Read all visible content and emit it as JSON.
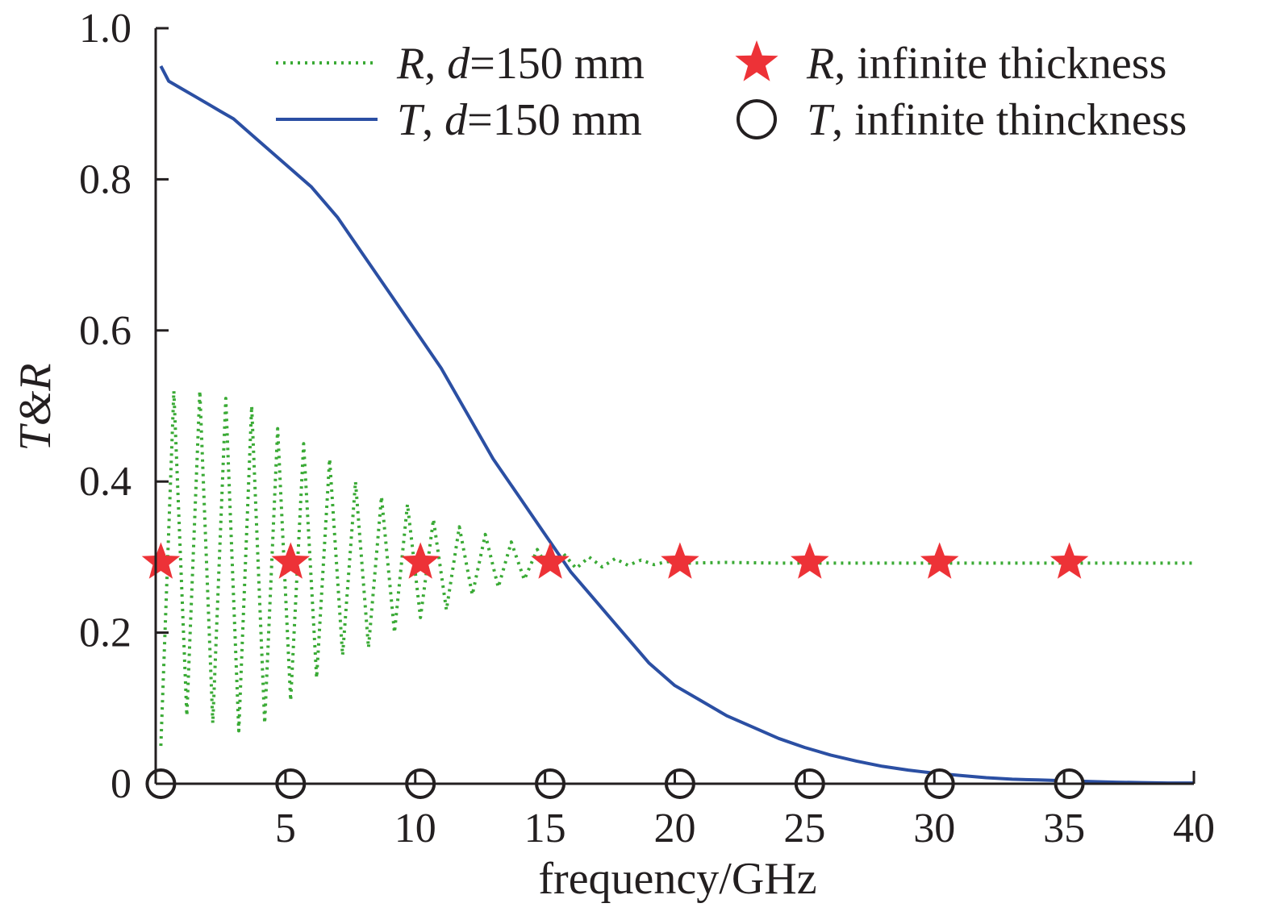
{
  "chart_data": {
    "type": "line",
    "title": "",
    "xlabel": "frequency/GHz",
    "ylabel": "T&R",
    "xlim": [
      0,
      40
    ],
    "ylim": [
      0,
      1.0
    ],
    "x_ticks": [
      5,
      10,
      15,
      20,
      25,
      30,
      35,
      40
    ],
    "x_tick_labels": [
      "5",
      "10",
      "15",
      "20",
      "25",
      "30",
      "35",
      "40"
    ],
    "y_ticks": [
      0,
      0.2,
      0.4,
      0.6,
      0.8,
      1.0
    ],
    "y_tick_labels": [
      "0",
      "0.2",
      "0.4",
      "0.6",
      "0.8",
      "1.0"
    ],
    "grid": false,
    "legend_position": "top-right",
    "series": [
      {
        "name": "R, d=150 mm",
        "style": "dotted",
        "color": "#3aaa35",
        "x": [
          0.2,
          0.7,
          1.2,
          1.7,
          2.2,
          2.7,
          3.2,
          3.7,
          4.2,
          4.7,
          5.2,
          5.7,
          6.2,
          6.7,
          7.2,
          7.7,
          8.2,
          8.7,
          9.2,
          9.7,
          10.2,
          10.7,
          11.2,
          11.7,
          12.2,
          12.7,
          13.2,
          13.7,
          14.2,
          14.7,
          15.2,
          15.7,
          16.2,
          16.7,
          17.2,
          17.7,
          18.2,
          18.7,
          19.2,
          19.7,
          20.5,
          22,
          24,
          26,
          28,
          30,
          32,
          34,
          36,
          38,
          40
        ],
        "y": [
          0.05,
          0.52,
          0.09,
          0.52,
          0.08,
          0.51,
          0.07,
          0.5,
          0.08,
          0.47,
          0.11,
          0.45,
          0.14,
          0.43,
          0.17,
          0.4,
          0.18,
          0.38,
          0.2,
          0.37,
          0.22,
          0.35,
          0.23,
          0.34,
          0.25,
          0.33,
          0.26,
          0.32,
          0.27,
          0.31,
          0.28,
          0.305,
          0.285,
          0.3,
          0.287,
          0.298,
          0.289,
          0.296,
          0.29,
          0.294,
          0.292,
          0.293,
          0.292,
          0.292,
          0.292,
          0.292,
          0.292,
          0.292,
          0.292,
          0.292,
          0.292
        ]
      },
      {
        "name": "T, d=150 mm",
        "style": "solid",
        "color": "#2b4fa3",
        "x": [
          0.2,
          0.5,
          1.0,
          1.5,
          2.0,
          2.5,
          3.0,
          3.5,
          4.0,
          5.0,
          6.0,
          7.0,
          8.0,
          9.0,
          10.0,
          11.0,
          12.0,
          13.0,
          14.0,
          15.0,
          16.0,
          17.0,
          18.0,
          19.0,
          20.0,
          21.0,
          22.0,
          23.0,
          24.0,
          25.0,
          26.0,
          27.0,
          28.0,
          29.0,
          30.0,
          31.0,
          32.0,
          33.0,
          34.0,
          35.0,
          36.0,
          37.0,
          38.0,
          39.0,
          40.0
        ],
        "y": [
          0.95,
          0.93,
          0.92,
          0.91,
          0.9,
          0.89,
          0.88,
          0.865,
          0.85,
          0.82,
          0.79,
          0.75,
          0.7,
          0.65,
          0.6,
          0.55,
          0.49,
          0.43,
          0.38,
          0.33,
          0.28,
          0.24,
          0.2,
          0.16,
          0.13,
          0.11,
          0.09,
          0.075,
          0.06,
          0.048,
          0.038,
          0.03,
          0.023,
          0.018,
          0.014,
          0.011,
          0.008,
          0.006,
          0.005,
          0.004,
          0.003,
          0.002,
          0.0015,
          0.001,
          0.001
        ]
      },
      {
        "name": "R, infinite thickness",
        "style": "star",
        "color": "#ed3237",
        "x": [
          0.2,
          5.2,
          10.2,
          15.2,
          20.2,
          25.2,
          30.2,
          35.2
        ],
        "y": [
          0.293,
          0.293,
          0.293,
          0.293,
          0.293,
          0.293,
          0.293,
          0.293
        ]
      },
      {
        "name": "T, infinite thinckness",
        "style": "open-circle",
        "color": "#231f20",
        "x": [
          0.2,
          5.2,
          10.2,
          15.2,
          20.2,
          25.2,
          30.2,
          35.2
        ],
        "y": [
          0,
          0,
          0,
          0,
          0,
          0,
          0,
          0
        ]
      }
    ],
    "legend": [
      {
        "prefix": "R",
        "suffix": ", ",
        "var": "d",
        "rest": "=150 mm"
      },
      {
        "prefix": "T",
        "suffix": ", ",
        "var": "d",
        "rest": "=150 mm"
      },
      {
        "prefix": "R",
        "suffix": ", infinite thickness",
        "var": "",
        "rest": ""
      },
      {
        "prefix": "T",
        "suffix": ", infinite thinckness",
        "var": "",
        "rest": ""
      }
    ]
  }
}
